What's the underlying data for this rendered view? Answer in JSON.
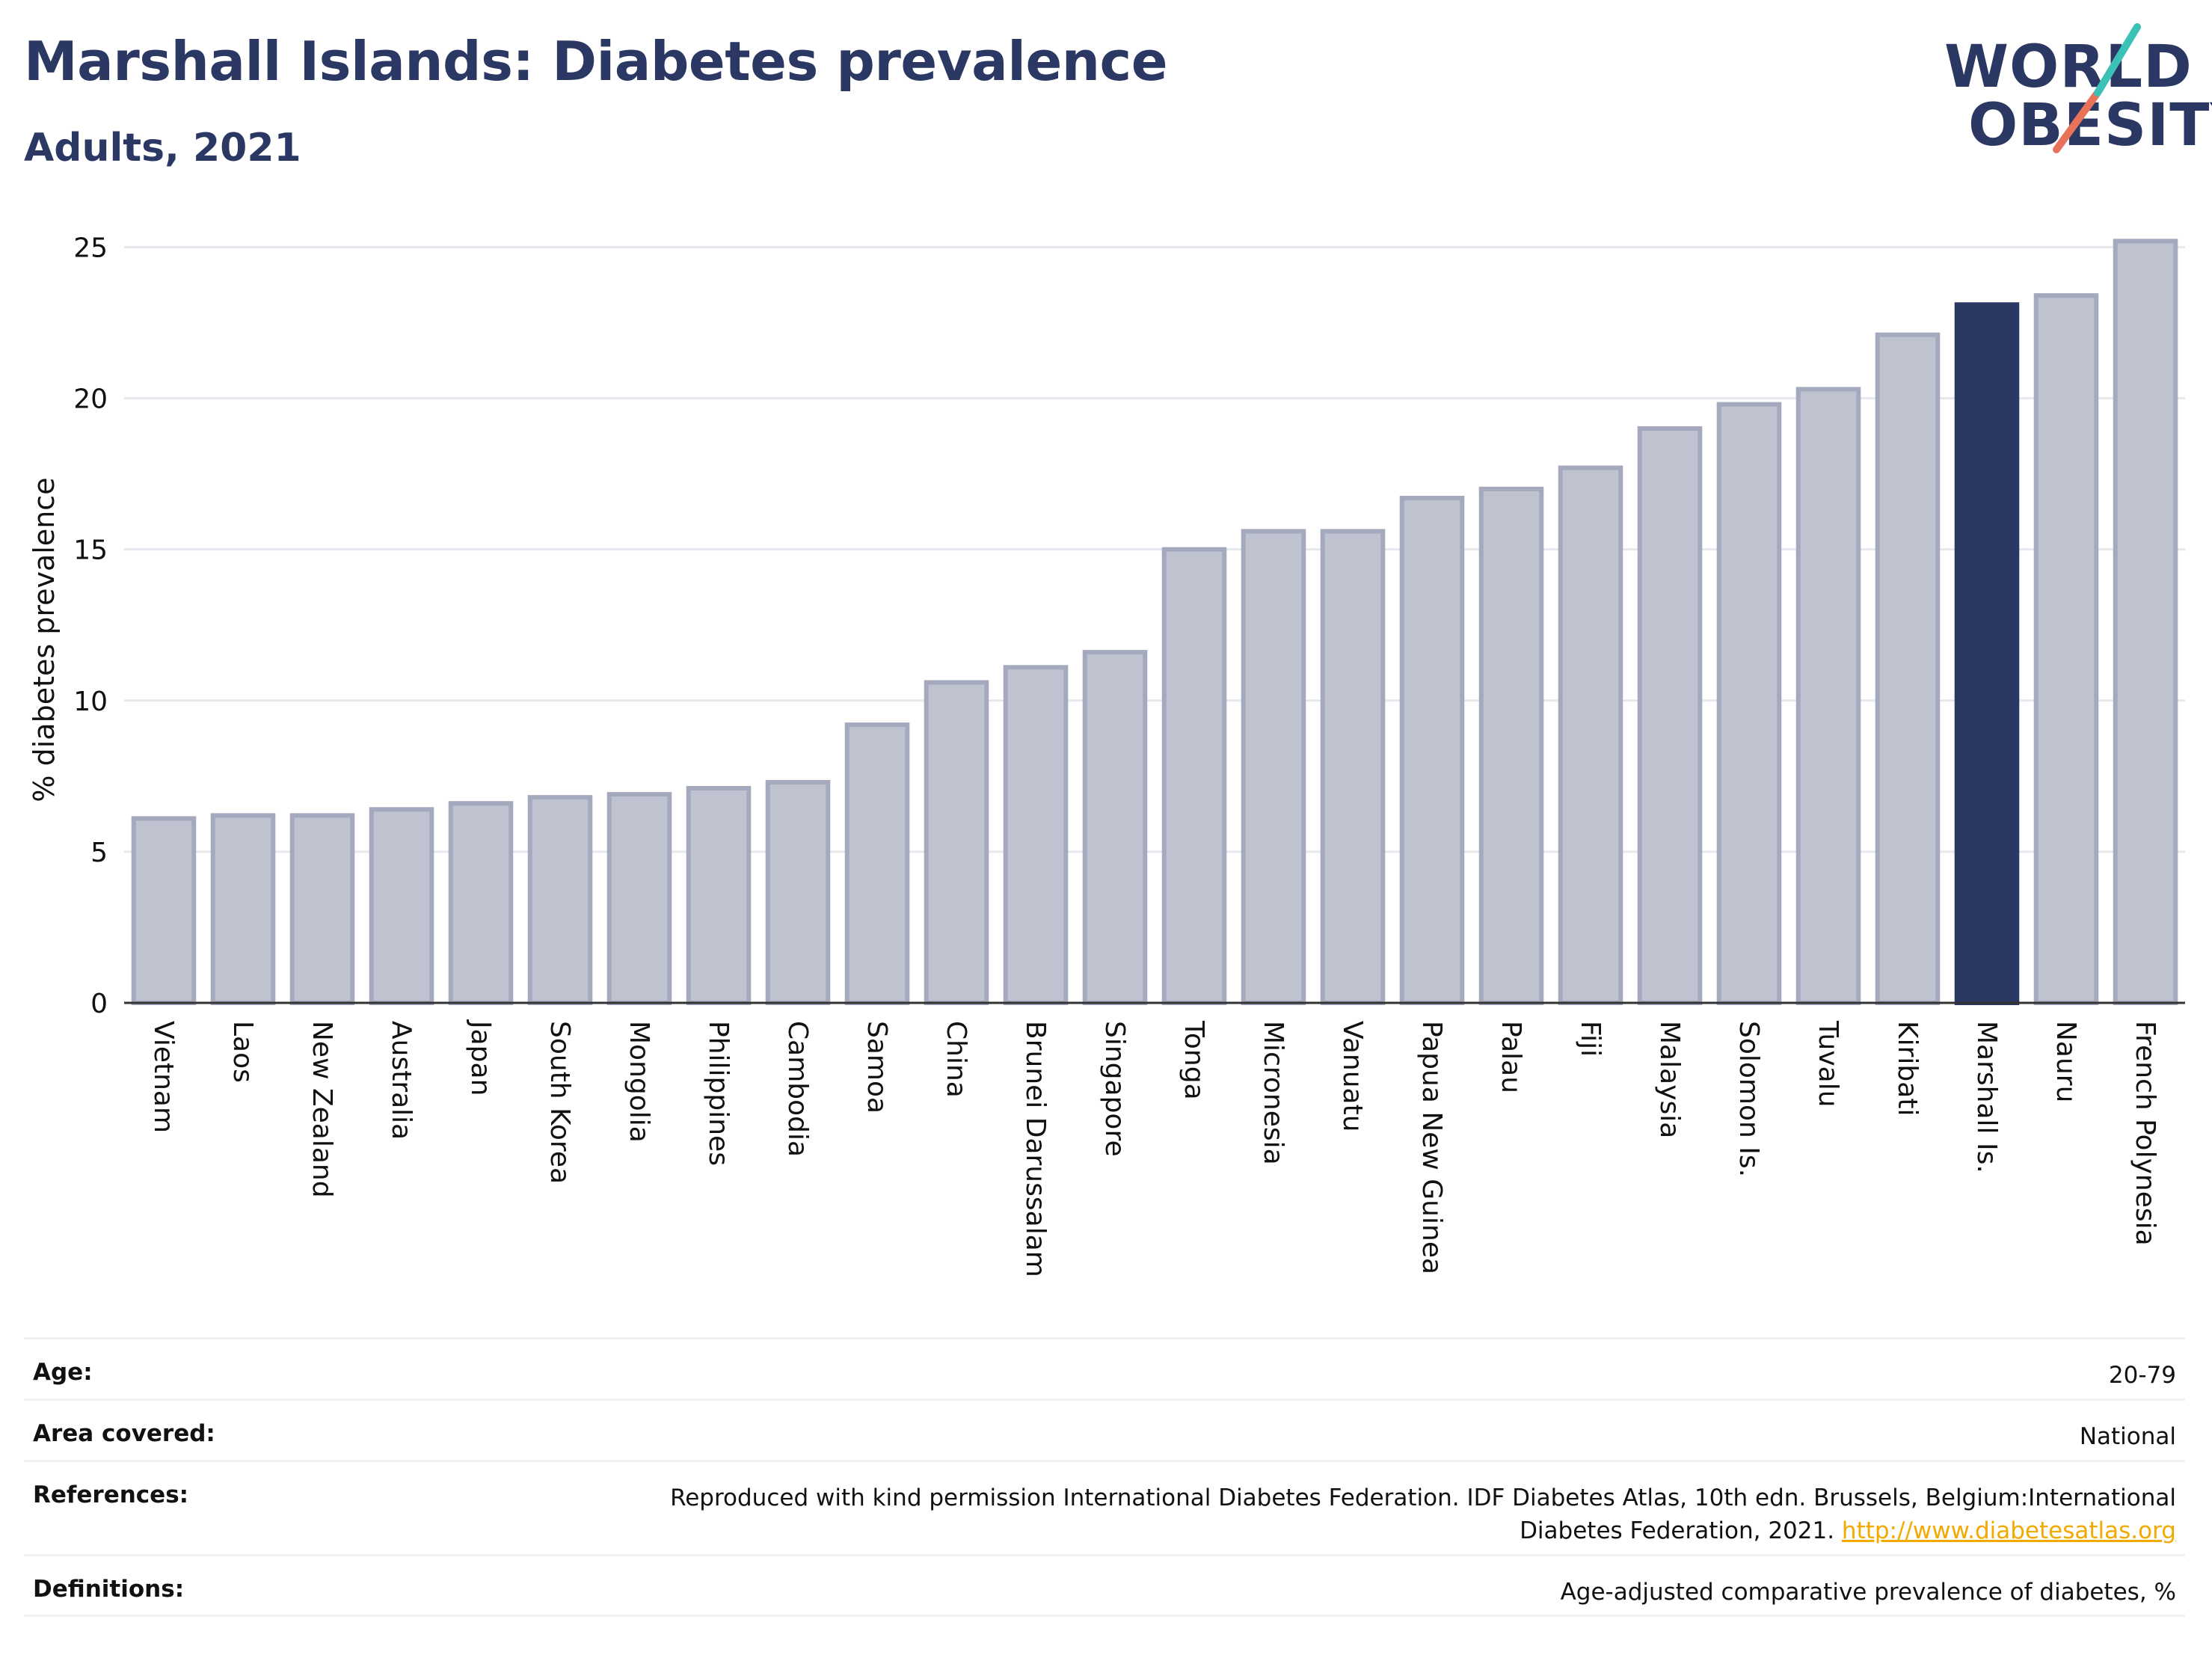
{
  "header": {
    "title": "Marshall Islands: Diabetes prevalence",
    "subtitle": "Adults, 2021"
  },
  "logo": {
    "line1": "WORLD",
    "line2": "OBESITY"
  },
  "chart_data": {
    "type": "bar",
    "ylabel": "% diabetes prevalence",
    "xlabel": "",
    "ylim": [
      0,
      26
    ],
    "yticks": [
      0,
      5,
      10,
      15,
      20,
      25
    ],
    "grid": true,
    "categories": [
      "Vietnam",
      "Laos",
      "New Zealand",
      "Australia",
      "Japan",
      "South Korea",
      "Mongolia",
      "Philippines",
      "Cambodia",
      "Samoa",
      "China",
      "Brunei Darussalam",
      "Singapore",
      "Tonga",
      "Micronesia",
      "Vanuatu",
      "Papua New Guinea",
      "Palau",
      "Fiji",
      "Malaysia",
      "Solomon Is.",
      "Tuvalu",
      "Kiribati",
      "Marshall Is.",
      "Nauru",
      "French Polynesia"
    ],
    "values": [
      6.1,
      6.2,
      6.2,
      6.4,
      6.6,
      6.8,
      6.9,
      7.1,
      7.3,
      9.2,
      10.6,
      11.1,
      11.6,
      15.0,
      15.6,
      15.6,
      16.7,
      17.0,
      17.7,
      19.0,
      19.8,
      20.3,
      22.1,
      23.1,
      23.4,
      25.2
    ],
    "highlight": "Marshall Is.",
    "colors": {
      "bar": "#bfc3d0",
      "bar_border": "#a4a9bd",
      "highlight": "#2c3864"
    }
  },
  "info": [
    {
      "label": "Age:",
      "value": "20-79"
    },
    {
      "label": "Area covered:",
      "value": "National"
    },
    {
      "label": "References:",
      "value": "Reproduced with kind permission International Diabetes Federation.  IDF Diabetes Atlas, 10th edn. Brussels, Belgium:International Diabetes Federation, 2021.",
      "link": "http://www.diabetesatlas.org"
    },
    {
      "label": "Definitions:",
      "value": "Age-adjusted comparative prevalence of diabetes, %"
    }
  ]
}
